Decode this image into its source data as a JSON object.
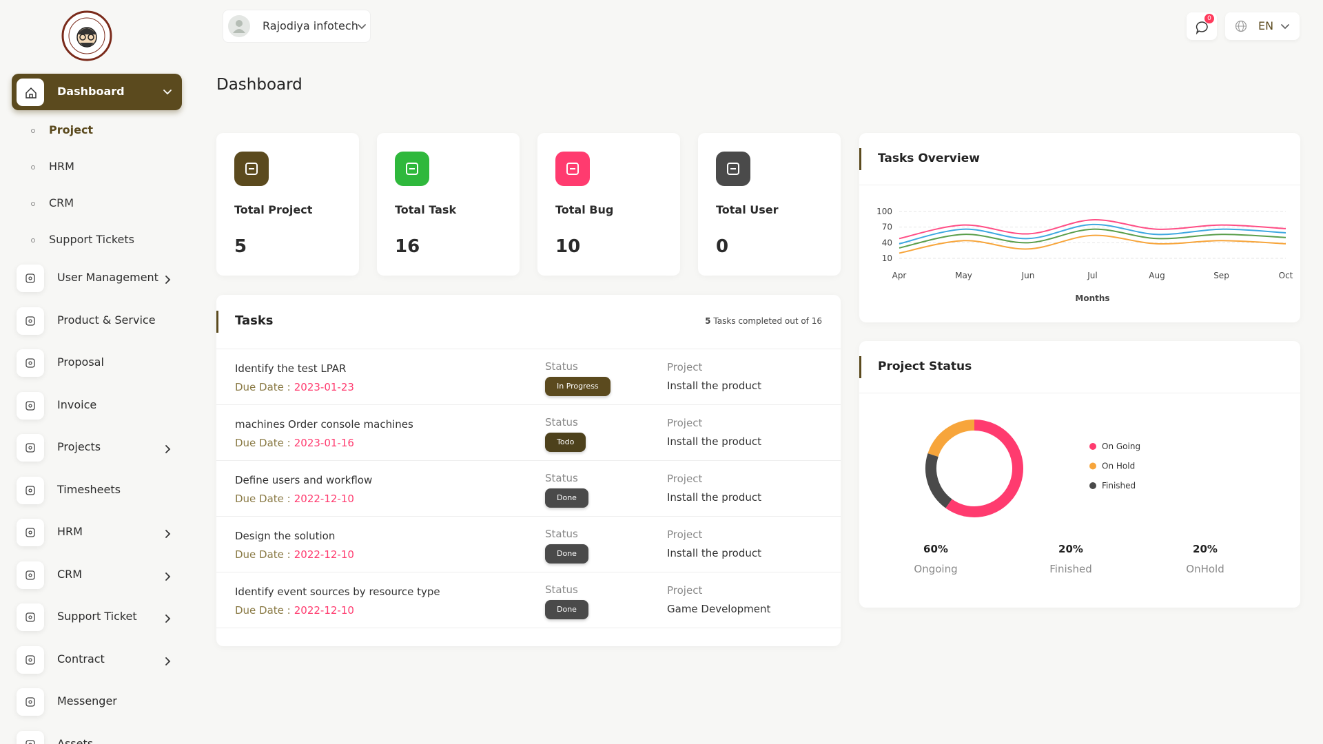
{
  "header": {
    "company": "Rajodiya infotech",
    "notifications": 0,
    "language": "EN"
  },
  "sidebar": {
    "active": "Dashboard",
    "submenu": [
      "Project",
      "HRM",
      "CRM",
      "Support Tickets"
    ],
    "menu": [
      {
        "label": "User Management",
        "has_children": true
      },
      {
        "label": "Product & Service",
        "has_children": false
      },
      {
        "label": "Proposal",
        "has_children": false
      },
      {
        "label": "Invoice",
        "has_children": false
      },
      {
        "label": "Projects",
        "has_children": true
      },
      {
        "label": "Timesheets",
        "has_children": false
      },
      {
        "label": "HRM",
        "has_children": true
      },
      {
        "label": "CRM",
        "has_children": true
      },
      {
        "label": "Support Ticket",
        "has_children": true
      },
      {
        "label": "Contract",
        "has_children": true
      },
      {
        "label": "Messenger",
        "has_children": false
      },
      {
        "label": "Assets",
        "has_children": false
      }
    ]
  },
  "page_title": "Dashboard",
  "stats": [
    {
      "label": "Total Project",
      "value": 5,
      "color": "#5b4a1e"
    },
    {
      "label": "Total Task",
      "value": 16,
      "color": "#2fb83c"
    },
    {
      "label": "Total Bug",
      "value": 10,
      "color": "#ff3b6f"
    },
    {
      "label": "Total User",
      "value": 0,
      "color": "#4a4a4a"
    }
  ],
  "tasks": {
    "title": "Tasks",
    "completed": 5,
    "summary": "Tasks completed out of 16",
    "due_label": "Due Date :",
    "status_label": "Status",
    "project_label": "Project",
    "rows": [
      {
        "name": "Identify the test LPAR",
        "due": "2023-01-23",
        "status": "In Progress",
        "status_color": "#5b4a1e",
        "project": "Install the product"
      },
      {
        "name": "machines Order console machines",
        "due": "2023-01-16",
        "status": "Todo",
        "status_color": "#4d411c",
        "project": "Install the product"
      },
      {
        "name": "Define users and workflow",
        "due": "2022-12-10",
        "status": "Done",
        "status_color": "#4a4a4a",
        "project": "Install the product"
      },
      {
        "name": "Design the solution",
        "due": "2022-12-10",
        "status": "Done",
        "status_color": "#4a4a4a",
        "project": "Install the product"
      },
      {
        "name": "Identify event sources by resource type",
        "due": "2022-12-10",
        "status": "Done",
        "status_color": "#4a4a4a",
        "project": "Game Development"
      }
    ]
  },
  "chart_data": [
    {
      "type": "line",
      "title": "Tasks Overview",
      "x_label": "Months",
      "categories": [
        "Apr",
        "May",
        "Jun",
        "Jul",
        "Aug",
        "Sep",
        "Oct"
      ],
      "ylim": [
        10,
        100
      ],
      "yticks": [
        10,
        40,
        70,
        100
      ],
      "grid": true,
      "series": [
        {
          "color": "#ff4d85",
          "values": [
            48,
            74,
            57,
            84,
            66,
            74,
            67
          ]
        },
        {
          "color": "#3fa8e0",
          "values": [
            38,
            66,
            48,
            75,
            56,
            66,
            59
          ]
        },
        {
          "color": "#5a9e4b",
          "values": [
            30,
            56,
            40,
            66,
            48,
            56,
            50
          ]
        },
        {
          "color": "#f7a53b",
          "values": [
            20,
            44,
            28,
            54,
            38,
            44,
            38
          ]
        }
      ]
    },
    {
      "type": "pie",
      "title": "Project Status",
      "categories": [
        "Ongoing",
        "Finished",
        "OnHold"
      ],
      "values": [
        60,
        20,
        20
      ],
      "value_labels": [
        "60%",
        "20%",
        "20%"
      ],
      "colors": [
        "#ff3b6f",
        "#4a4a4a",
        "#f7a53b"
      ],
      "legend": [
        {
          "label": "On Going",
          "color": "#ff3b6f"
        },
        {
          "label": "On Hold",
          "color": "#f7a53b"
        },
        {
          "label": "Finished",
          "color": "#4a4a4a"
        }
      ]
    }
  ]
}
